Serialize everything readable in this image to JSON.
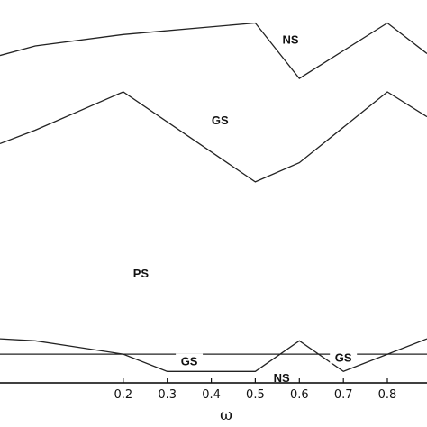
{
  "chart_data": {
    "type": "line",
    "xlabel": "ω",
    "xlim": [
      -0.08,
      0.89
    ],
    "ylim": [
      0,
      1
    ],
    "x_ticks": [
      0.2,
      0.3,
      0.4,
      0.5,
      0.6,
      0.7,
      0.8
    ],
    "x_tick_labels": [
      "0.2",
      "0.3",
      "0.4",
      "0.5",
      "0.6",
      "0.7",
      "0.8"
    ],
    "series": [
      {
        "x": [
          -0.08,
          0.0,
          0.2,
          0.5,
          0.6,
          0.8,
          0.89
        ],
        "y": [
          0.855,
          0.88,
          0.91,
          0.94,
          0.795,
          0.94,
          0.86
        ]
      },
      {
        "x": [
          -0.08,
          0.0,
          0.2,
          0.5,
          0.6,
          0.8,
          0.89
        ],
        "y": [
          0.625,
          0.66,
          0.76,
          0.525,
          0.575,
          0.76,
          0.695
        ]
      },
      {
        "x": [
          -0.08,
          0.1,
          0.2,
          0.3,
          0.5,
          0.6,
          0.7,
          0.89
        ],
        "y": [
          0.075,
          0.075,
          0.075,
          0.03,
          0.03,
          0.11,
          0.03,
          0.115
        ]
      },
      {
        "x": [
          -0.08,
          0.0,
          0.2,
          0.6,
          0.8,
          0.89
        ],
        "y": [
          0.115,
          0.11,
          0.075,
          0.075,
          0.075,
          0.075
        ]
      }
    ],
    "annotations": [
      {
        "text": "NS",
        "x": 0.58,
        "y": 0.895
      },
      {
        "text": "GS",
        "x": 0.42,
        "y": 0.685
      },
      {
        "text": "PS",
        "x": 0.24,
        "y": 0.285
      },
      {
        "text": "GS",
        "x": 0.35,
        "y": 0.055
      },
      {
        "text": "NS",
        "x": 0.56,
        "y": 0.012
      },
      {
        "text": "GS",
        "x": 0.7,
        "y": 0.065
      }
    ]
  }
}
